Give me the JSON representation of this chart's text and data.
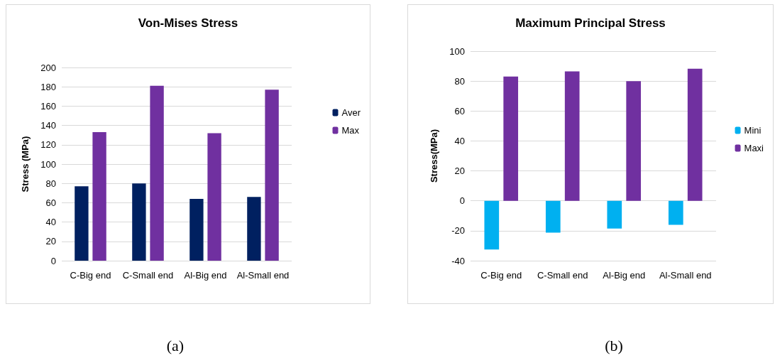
{
  "chart_data": [
    {
      "type": "bar",
      "title": "Von-Mises Stress",
      "ylabel": "Stress (MPa)",
      "categories": [
        "C-Big end",
        "C-Small end",
        "Al-Big end",
        "Al-Small end"
      ],
      "series": [
        {
          "name": "Aver",
          "color": "#002060",
          "values": [
            77,
            80,
            64,
            66
          ]
        },
        {
          "name": "Max",
          "color": "#7030a0",
          "values": [
            133,
            181,
            132,
            177
          ]
        }
      ],
      "ylim": [
        0,
        200
      ],
      "yticks": [
        0,
        20,
        40,
        60,
        80,
        100,
        120,
        140,
        160,
        180,
        200
      ],
      "grid": "y",
      "legend": "right",
      "annotations": [
        "(a)"
      ]
    },
    {
      "type": "bar",
      "title": "Maximum Principal Stress",
      "ylabel": "Stress(MPa)",
      "categories": [
        "C-Big end",
        "C-Small end",
        "Al-Big end",
        "Al-Small end"
      ],
      "series": [
        {
          "name": "Mini",
          "color": "#00b0f0",
          "values": [
            -32.5,
            -21.3,
            -18.5,
            -16
          ]
        },
        {
          "name": "Maxi",
          "color": "#7030a0",
          "values": [
            83,
            86.5,
            80,
            88.3
          ]
        }
      ],
      "ylim": [
        -40,
        100
      ],
      "yticks": [
        -40,
        -20,
        0,
        20,
        40,
        60,
        80,
        100
      ],
      "grid": "y",
      "legend": "right",
      "annotations": [
        "(b)"
      ]
    }
  ]
}
